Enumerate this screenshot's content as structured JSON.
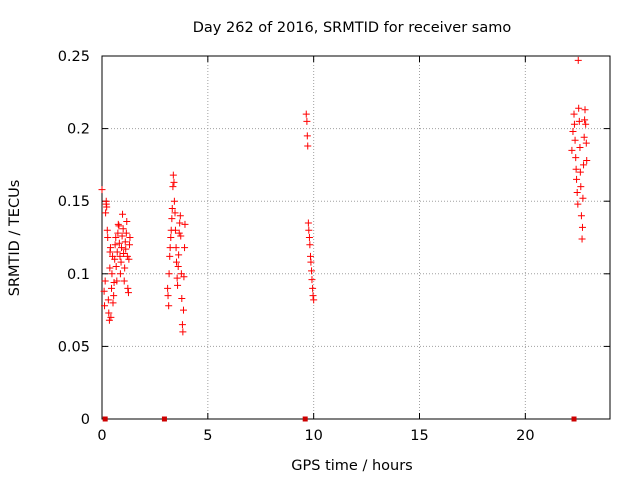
{
  "chart_data": {
    "type": "scatter",
    "title": "Day 262 of 2016, SRMTID for receiver samo",
    "xlabel": "GPS time / hours",
    "ylabel": "SRMTID / TECUs",
    "xlim": [
      0,
      24
    ],
    "ylim": [
      0,
      0.25
    ],
    "x_ticks": [
      0,
      5,
      10,
      15,
      20
    ],
    "x_tick_labels": [
      "0",
      "5",
      "10",
      "15",
      "20"
    ],
    "y_ticks": [
      0,
      0.05,
      0.1,
      0.15,
      0.2,
      0.25
    ],
    "y_tick_labels": [
      "0",
      "0.05",
      "0.1",
      "0.15",
      "0.2",
      "0.25"
    ],
    "grid": true,
    "marker": "plus",
    "marker_color": "#ff0000",
    "zero_marker_color": "#cc0000",
    "grid_color": "#a0a0a0",
    "series": [
      {
        "marker": "plus",
        "points": [
          [
            0.0,
            0.158
          ],
          [
            0.1,
            0.088
          ],
          [
            0.12,
            0.078
          ],
          [
            0.15,
            0.095
          ],
          [
            0.17,
            0.142
          ],
          [
            0.2,
            0.148
          ],
          [
            0.2,
            0.15
          ],
          [
            0.22,
            0.146
          ],
          [
            0.25,
            0.13
          ],
          [
            0.27,
            0.125
          ],
          [
            0.3,
            0.082
          ],
          [
            0.32,
            0.073
          ],
          [
            0.35,
            0.068
          ],
          [
            0.37,
            0.104
          ],
          [
            0.38,
            0.115
          ],
          [
            0.4,
            0.118
          ],
          [
            0.42,
            0.07
          ],
          [
            0.45,
            0.09
          ],
          [
            0.47,
            0.1
          ],
          [
            0.5,
            0.112
          ],
          [
            0.52,
            0.08
          ],
          [
            0.55,
            0.085
          ],
          [
            0.57,
            0.094
          ],
          [
            0.6,
            0.11
          ],
          [
            0.62,
            0.12
          ],
          [
            0.65,
            0.125
          ],
          [
            0.67,
            0.105
          ],
          [
            0.7,
            0.095
          ],
          [
            0.72,
            0.115
          ],
          [
            0.75,
            0.128
          ],
          [
            0.77,
            0.134
          ],
          [
            0.8,
            0.133
          ],
          [
            0.82,
            0.121
          ],
          [
            0.85,
            0.112
          ],
          [
            0.87,
            0.1
          ],
          [
            0.9,
            0.108
          ],
          [
            0.92,
            0.118
          ],
          [
            0.95,
            0.126
          ],
          [
            0.97,
            0.141
          ],
          [
            1.0,
            0.131
          ],
          [
            1.02,
            0.114
          ],
          [
            1.05,
            0.095
          ],
          [
            1.07,
            0.104
          ],
          [
            1.1,
            0.122
          ],
          [
            1.12,
            0.117
          ],
          [
            1.15,
            0.128
          ],
          [
            1.17,
            0.136
          ],
          [
            1.2,
            0.112
          ],
          [
            1.22,
            0.09
          ],
          [
            1.25,
            0.087
          ],
          [
            1.27,
            0.11
          ],
          [
            1.3,
            0.12
          ],
          [
            1.32,
            0.125
          ]
        ]
      },
      {
        "marker": "plus",
        "points": [
          [
            3.1,
            0.09
          ],
          [
            3.12,
            0.085
          ],
          [
            3.15,
            0.078
          ],
          [
            3.17,
            0.1
          ],
          [
            3.2,
            0.112
          ],
          [
            3.22,
            0.118
          ],
          [
            3.25,
            0.125
          ],
          [
            3.27,
            0.13
          ],
          [
            3.3,
            0.138
          ],
          [
            3.32,
            0.145
          ],
          [
            3.35,
            0.16
          ],
          [
            3.37,
            0.168
          ],
          [
            3.4,
            0.163
          ],
          [
            3.42,
            0.15
          ],
          [
            3.45,
            0.142
          ],
          [
            3.47,
            0.13
          ],
          [
            3.5,
            0.118
          ],
          [
            3.52,
            0.108
          ],
          [
            3.55,
            0.097
          ],
          [
            3.57,
            0.092
          ],
          [
            3.6,
            0.105
          ],
          [
            3.62,
            0.113
          ],
          [
            3.65,
            0.128
          ],
          [
            3.67,
            0.135
          ],
          [
            3.7,
            0.14
          ],
          [
            3.72,
            0.126
          ],
          [
            3.75,
            0.1
          ],
          [
            3.77,
            0.083
          ],
          [
            3.8,
            0.065
          ],
          [
            3.82,
            0.06
          ],
          [
            3.85,
            0.075
          ],
          [
            3.87,
            0.098
          ],
          [
            3.9,
            0.118
          ],
          [
            3.92,
            0.134
          ]
        ]
      },
      {
        "marker": "plus",
        "points": [
          [
            9.65,
            0.21
          ],
          [
            9.68,
            0.205
          ],
          [
            9.7,
            0.195
          ],
          [
            9.72,
            0.188
          ],
          [
            9.75,
            0.135
          ],
          [
            9.77,
            0.13
          ],
          [
            9.8,
            0.125
          ],
          [
            9.82,
            0.12
          ],
          [
            9.85,
            0.112
          ],
          [
            9.87,
            0.108
          ],
          [
            9.9,
            0.102
          ],
          [
            9.92,
            0.096
          ],
          [
            9.95,
            0.09
          ],
          [
            9.97,
            0.085
          ],
          [
            10.0,
            0.082
          ]
        ]
      },
      {
        "marker": "plus",
        "points": [
          [
            22.2,
            0.185
          ],
          [
            22.25,
            0.198
          ],
          [
            22.3,
            0.21
          ],
          [
            22.32,
            0.203
          ],
          [
            22.35,
            0.192
          ],
          [
            22.38,
            0.18
          ],
          [
            22.4,
            0.172
          ],
          [
            22.42,
            0.165
          ],
          [
            22.45,
            0.156
          ],
          [
            22.48,
            0.148
          ],
          [
            22.5,
            0.247
          ],
          [
            22.52,
            0.214
          ],
          [
            22.55,
            0.205
          ],
          [
            22.58,
            0.187
          ],
          [
            22.6,
            0.17
          ],
          [
            22.62,
            0.16
          ],
          [
            22.65,
            0.14
          ],
          [
            22.68,
            0.124
          ],
          [
            22.7,
            0.132
          ],
          [
            22.72,
            0.152
          ],
          [
            22.75,
            0.175
          ],
          [
            22.78,
            0.194
          ],
          [
            22.8,
            0.206
          ],
          [
            22.82,
            0.213
          ],
          [
            22.85,
            0.203
          ],
          [
            22.88,
            0.19
          ],
          [
            22.9,
            0.178
          ]
        ]
      },
      {
        "marker": "square",
        "points": [
          [
            0.15,
            0
          ],
          [
            2.95,
            0
          ],
          [
            9.6,
            0
          ],
          [
            22.3,
            0
          ]
        ]
      }
    ]
  }
}
